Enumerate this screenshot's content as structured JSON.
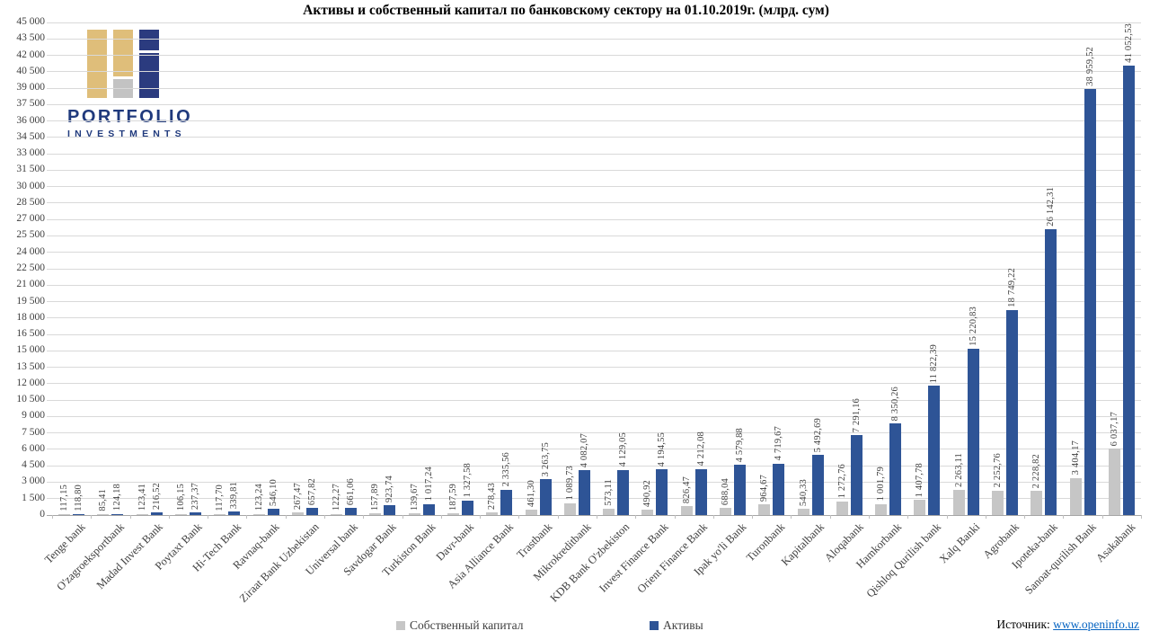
{
  "title": "Активы и собственный капитал по банковскому сектору на 01.10.2019г. (млрд. сум)",
  "logo": {
    "line1": "PORTFOLIO",
    "line2": "INVESTMENTS",
    "colors": {
      "gold": "#dfbe7a",
      "gray": "#c3c3c3",
      "navy": "#2b3b7f",
      "text": "#203a7d"
    }
  },
  "legend": [
    {
      "label": "Собственный капитал",
      "color": "#c6c6c6"
    },
    {
      "label": "Активы",
      "color": "#2e5496"
    }
  ],
  "source": {
    "prefix": "Источник: ",
    "link": "www.openinfo.uz"
  },
  "chart_data": {
    "type": "bar",
    "title": "Активы и собственный капитал по банковскому сектору на 01.10.2019г. (млрд. сум)",
    "ylabel": "",
    "xlabel": "",
    "ylim": [
      0,
      45000
    ],
    "ytick_step": 1500,
    "grid": true,
    "legend_position": "bottom",
    "number_format": "thousands space, decimal comma, 2 decimals",
    "categories": [
      "Tenge bank",
      "O'zagroeksportbank",
      "Madad Invest Bank",
      "Poytaxt Bank",
      "Hi-Tech Bank",
      "Ravnaq-bank",
      "Ziraat Bank Uzbekistan",
      "Universal bank",
      "Savdogar Bank",
      "Turkiston Bank",
      "Davr-bank",
      "Asia Alliance Bank",
      "Trastbank",
      "Mikrokreditbank",
      "KDB Bank O'zbekiston",
      "Invest Finance Bank",
      "Orient Finance Bank",
      "Ipak yo'li Bank",
      "Turonbank",
      "Kapitalbank",
      "Aloqabank",
      "Hamkorbank",
      "Qishloq Qurilish bank",
      "Xalq Banki",
      "Agrobank",
      "Ipoteka-bank",
      "Sanoat-qurilish Bank",
      "Asakabank"
    ],
    "series": [
      {
        "name": "Собственный капитал",
        "color": "#c6c6c6",
        "values": [
          117.15,
          85.41,
          123.41,
          106.15,
          117.7,
          123.24,
          267.47,
          122.27,
          157.89,
          139.67,
          187.59,
          278.43,
          461.3,
          1089.73,
          573.11,
          490.92,
          826.47,
          688.04,
          964.67,
          540.33,
          1272.76,
          1001.79,
          1407.78,
          2263.11,
          2252.76,
          2228.82,
          3404.17,
          6037.17
        ]
      },
      {
        "name": "Активы",
        "color": "#2e5496",
        "values": [
          118.8,
          124.18,
          216.52,
          237.37,
          339.81,
          546.1,
          657.82,
          661.06,
          923.74,
          1017.24,
          1327.58,
          2335.56,
          3263.75,
          4082.07,
          4129.05,
          4194.55,
          4212.08,
          4579.88,
          4719.67,
          5492.69,
          7291.16,
          8350.26,
          11822.39,
          15220.83,
          18749.22,
          26142.31,
          38959.52,
          41052.53
        ]
      }
    ]
  }
}
